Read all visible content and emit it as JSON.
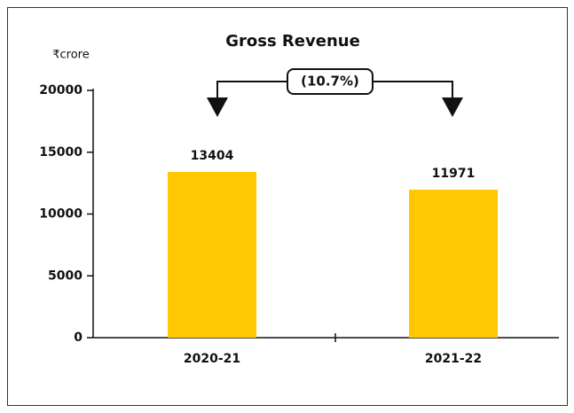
{
  "chart_data": {
    "type": "bar",
    "title": "Gross Revenue",
    "y_unit_label": "₹crore",
    "categories": [
      "2020-21",
      "2021-22"
    ],
    "values": [
      13404,
      11971
    ],
    "color": "#ffc800",
    "ylim": [
      0,
      20000
    ],
    "yticks": [
      0,
      5000,
      10000,
      15000,
      20000
    ],
    "grid": false,
    "annotation": "(10.7%)"
  }
}
